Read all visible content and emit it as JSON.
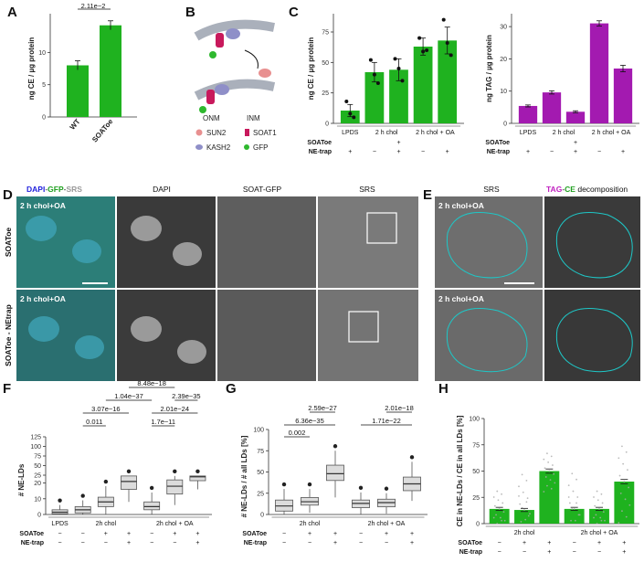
{
  "colors": {
    "green": "#1fb21f",
    "purple": "#a31ab0",
    "box": "#dcdcdc",
    "cyan": "#1ec7c7",
    "dark": "#222222"
  },
  "panels": {
    "A": "A",
    "B": "B",
    "C": "C",
    "D": "D",
    "E": "E",
    "F": "F",
    "G": "G",
    "H": "H"
  },
  "schematic": {
    "onm": "ONM",
    "inm": "INM",
    "legend": [
      "SUN2",
      "SOAT1",
      "KASH2",
      "GFP"
    ]
  },
  "images": {
    "d_headers": {
      "col1_parts": [
        "DAPI",
        "-",
        "GFP",
        "-",
        "SRS"
      ],
      "col2": "DAPI",
      "col3": "SOAT-GFP",
      "col4": "SRS"
    },
    "d_rows": [
      "SOAToe",
      "SOAToe - NEtrap"
    ],
    "d_overlay": "2 h chol+OA",
    "e_headers": {
      "col1": "SRS",
      "col2_parts": [
        "TAG",
        "-",
        "CE",
        "decomposition"
      ]
    },
    "e_overlay": "2 h chol+OA"
  },
  "chart_data": [
    {
      "id": "A",
      "type": "bar",
      "categories": [
        "WT",
        "SOAToe"
      ],
      "values": [
        8.0,
        14.2
      ],
      "errors": [
        0.7,
        0.7
      ],
      "ylabel": "ng CE / µg protein",
      "yticks": [
        "0",
        "5",
        "10"
      ],
      "ylim": [
        0,
        16
      ],
      "pvalue": "2.11e−2"
    },
    {
      "id": "C1",
      "type": "bar",
      "values": [
        10.5,
        42,
        44,
        63,
        68
      ],
      "errors": [
        5,
        8,
        9,
        7,
        11
      ],
      "points": [
        [
          18,
          8,
          5
        ],
        [
          52,
          40,
          33
        ],
        [
          53,
          45,
          35
        ],
        [
          70,
          59,
          60
        ],
        [
          85,
          66,
          56
        ]
      ],
      "ylabel": "ng CE / µg protein",
      "yticks": [
        "0",
        "25",
        "50",
        "75"
      ],
      "ylim": [
        0,
        90
      ],
      "conditions": {
        "groups": [
          "LPDS",
          "2 h chol",
          "2 h chol + OA"
        ],
        "rows": [
          {
            "name": "SOAToe",
            "marks": [
              "",
              "",
              "+",
              "",
              ""
            ]
          },
          {
            "name": "NE-trap",
            "marks": [
              "+",
              "−",
              "+",
              "−",
              "+"
            ]
          }
        ]
      }
    },
    {
      "id": "C2",
      "type": "bar",
      "values": [
        5.4,
        9.6,
        3.6,
        31,
        17
      ],
      "errors": [
        0.3,
        0.5,
        0.3,
        0.8,
        1.0
      ],
      "ylabel": "ng TAG / µg protein",
      "yticks": [
        "0",
        "10",
        "20",
        "30"
      ],
      "ylim": [
        0,
        34
      ],
      "conditions": {
        "groups": [
          "LPDS",
          "2 h chol",
          "2 h chol + OA"
        ],
        "rows": [
          {
            "name": "SOAToe",
            "marks": [
              "",
              "",
              "+",
              "",
              ""
            ]
          },
          {
            "name": "NE-trap",
            "marks": [
              "+",
              "−",
              "+",
              "−",
              "+"
            ]
          }
        ]
      }
    },
    {
      "id": "F",
      "type": "box",
      "ylabel": "# NE-LDs",
      "yticks": [
        "0",
        "10",
        "20",
        "25",
        "50",
        "75",
        "100",
        "125"
      ],
      "boxes": [
        {
          "q1": 0.5,
          "med": 1.5,
          "q3": 3,
          "lo": 0,
          "hi": 6
        },
        {
          "q1": 1,
          "med": 3,
          "q3": 5,
          "lo": 0,
          "hi": 9
        },
        {
          "q1": 5,
          "med": 8,
          "q3": 11,
          "lo": 0,
          "hi": 18
        },
        {
          "q1": 16,
          "med": 21,
          "q3": 24.5,
          "lo": 8,
          "hi": 24.5
        },
        {
          "q1": 3,
          "med": 5,
          "q3": 8,
          "lo": 0,
          "hi": 14
        },
        {
          "q1": 13,
          "med": 18,
          "q3": 22,
          "lo": 6,
          "hi": 24.5
        },
        {
          "q1": 21.5,
          "med": 24,
          "q3": 24.5,
          "lo": 16,
          "hi": 24.5
        }
      ],
      "pvalues": [
        "0.011",
        "3.07e−16",
        "1.04e−37",
        "8.48e−18",
        "2.01e−24",
        "2.39e−35",
        "1.7e−11"
      ],
      "conditions": {
        "groups": [
          "LPDS",
          "2h chol",
          "2h chol + OA"
        ],
        "rows": [
          {
            "name": "SOAToe",
            "marks": [
              "−",
              "−",
              "+",
              "+",
              "−",
              "+",
              "+"
            ]
          },
          {
            "name": "NE-trap",
            "marks": [
              "−",
              "−",
              "−",
              "+",
              "−",
              "−",
              "+"
            ]
          }
        ]
      }
    },
    {
      "id": "G",
      "type": "box",
      "ylabel": "# NE-LDs / # all LDs [%]",
      "yticks": [
        "0",
        "25",
        "50",
        "75",
        "100"
      ],
      "ylim": [
        0,
        100
      ],
      "boxes": [
        {
          "q1": 4,
          "med": 10,
          "q3": 17,
          "lo": 0,
          "hi": 30
        },
        {
          "q1": 11,
          "med": 15,
          "q3": 20,
          "lo": 2,
          "hi": 30
        },
        {
          "q1": 40,
          "med": 48,
          "q3": 58,
          "lo": 20,
          "hi": 75
        },
        {
          "q1": 8,
          "med": 13,
          "q3": 17,
          "lo": 0,
          "hi": 26
        },
        {
          "q1": 9,
          "med": 14,
          "q3": 18,
          "lo": 1,
          "hi": 25
        },
        {
          "q1": 28,
          "med": 36,
          "q3": 44,
          "lo": 16,
          "hi": 62
        }
      ],
      "pvalues": [
        "0.002",
        "6.36e−35",
        "2.59e−27",
        "1.71e−22",
        "2.01e−18"
      ],
      "conditions": {
        "groups": [
          "2h chol",
          "2h chol + OA"
        ],
        "rows": [
          {
            "name": "SOAToe",
            "marks": [
              "−",
              "+",
              "+",
              "−",
              "+",
              "+"
            ]
          },
          {
            "name": "NE-trap",
            "marks": [
              "−",
              "−",
              "+",
              "−",
              "−",
              "+"
            ]
          }
        ]
      }
    },
    {
      "id": "H",
      "type": "bar",
      "values": [
        14,
        13,
        50,
        14,
        14,
        40
      ],
      "errors": [
        1.5,
        1.5,
        2,
        1.5,
        1.5,
        2
      ],
      "ylabel": "CE in NE-LDs / CE in all LDs [%]",
      "yticks": [
        "0",
        "25",
        "50",
        "75",
        "100"
      ],
      "ylim": [
        0,
        100
      ],
      "conditions": {
        "groups": [
          "2h chol",
          "2h chol + OA"
        ],
        "rows": [
          {
            "name": "SOAToe",
            "marks": [
              "−",
              "+",
              "+",
              "−",
              "+",
              "+"
            ]
          },
          {
            "name": "NE-trap",
            "marks": [
              "−",
              "−",
              "+",
              "−",
              "−",
              "+"
            ]
          }
        ]
      }
    }
  ]
}
